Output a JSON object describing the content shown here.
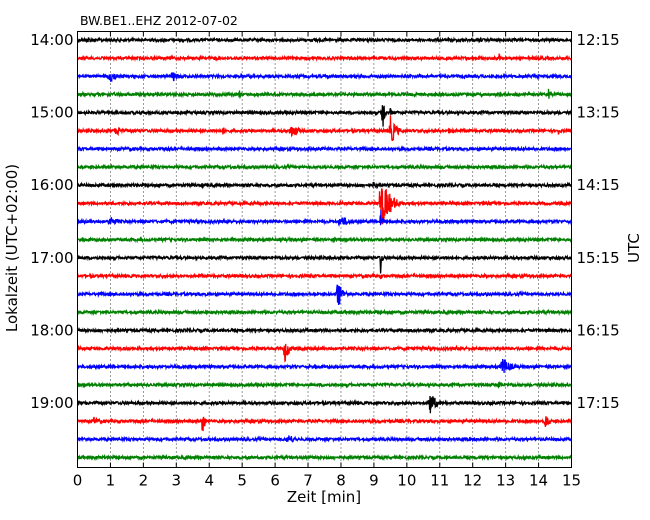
{
  "chart_data": {
    "type": "line",
    "chart_kind": "seismogram (dayplot)",
    "title": "BW.BE1..EHZ 2012-07-02",
    "xlabel": "Zeit  [min]",
    "ylabel_left": "Lokalzeit (UTC+02:00)",
    "ylabel_right": "UTC",
    "xlim": [
      0,
      15
    ],
    "x_ticks": [
      "0",
      "1",
      "2",
      "3",
      "4",
      "5",
      "6",
      "7",
      "8",
      "9",
      "10",
      "11",
      "12",
      "13",
      "14",
      "15"
    ],
    "vertical_grid": "dotted, every 1 min",
    "row_interval_min": 15,
    "row_count": 24,
    "row_colors": [
      "#000000",
      "#ff0000",
      "#0000ff",
      "#008000"
    ],
    "left_tick_labels": [
      "14:00",
      "15:00",
      "16:00",
      "17:00",
      "18:00",
      "19:00"
    ],
    "left_tick_rows": [
      0,
      4,
      8,
      12,
      16,
      20
    ],
    "right_tick_labels": [
      "12:15",
      "13:15",
      "14:15",
      "15:15",
      "16:15",
      "17:15"
    ],
    "right_tick_rows": [
      0,
      4,
      8,
      12,
      16,
      20
    ],
    "events": [
      {
        "row": 4,
        "minute": 9.25,
        "amplitude_rows": 1.6,
        "width_min": 0.12,
        "note": "large spike, start of quake"
      },
      {
        "row": 5,
        "minute": 9.5,
        "amplitude_rows": 0.9,
        "width_min": 0.35
      },
      {
        "row": 9,
        "minute": 9.25,
        "amplitude_rows": 1.4,
        "width_min": 0.55,
        "note": "main earthquake"
      },
      {
        "row": 10,
        "minute": 9.2,
        "amplitude_rows": 1.0,
        "width_min": 0.1
      },
      {
        "row": 12,
        "minute": 9.2,
        "amplitude_rows": 1.2,
        "width_min": 0.08
      },
      {
        "row": 5,
        "minute": 6.5,
        "amplitude_rows": 0.45,
        "width_min": 0.4
      },
      {
        "row": 10,
        "minute": 1.0,
        "amplitude_rows": 0.35,
        "width_min": 0.4
      },
      {
        "row": 10,
        "minute": 8.0,
        "amplitude_rows": 0.35,
        "width_min": 0.5
      },
      {
        "row": 14,
        "minute": 7.9,
        "amplitude_rows": 0.9,
        "width_min": 0.3
      },
      {
        "row": 17,
        "minute": 6.3,
        "amplitude_rows": 0.75,
        "width_min": 0.25
      },
      {
        "row": 18,
        "minute": 12.9,
        "amplitude_rows": 0.55,
        "width_min": 0.5
      },
      {
        "row": 19,
        "minute": 12.8,
        "amplitude_rows": 0.3,
        "width_min": 0.2
      },
      {
        "row": 20,
        "minute": 10.7,
        "amplitude_rows": 0.75,
        "width_min": 0.35
      },
      {
        "row": 21,
        "minute": 3.8,
        "amplitude_rows": 0.9,
        "width_min": 0.12
      },
      {
        "row": 21,
        "minute": 14.2,
        "amplitude_rows": 0.45,
        "width_min": 0.3
      },
      {
        "row": 21,
        "minute": 0.5,
        "amplitude_rows": 0.25,
        "width_min": 0.4
      },
      {
        "row": 22,
        "minute": 6.4,
        "amplitude_rows": 0.3,
        "width_min": 0.5
      },
      {
        "row": 2,
        "minute": 1.0,
        "amplitude_rows": 0.35,
        "width_min": 0.5
      },
      {
        "row": 2,
        "minute": 2.9,
        "amplitude_rows": 0.3,
        "width_min": 0.4
      },
      {
        "row": 1,
        "minute": 12.8,
        "amplitude_rows": 0.3,
        "width_min": 0.2
      },
      {
        "row": 3,
        "minute": 4.9,
        "amplitude_rows": 0.35,
        "width_min": 0.1
      },
      {
        "row": 3,
        "minute": 14.3,
        "amplitude_rows": 0.35,
        "width_min": 0.1
      },
      {
        "row": 4,
        "minute": 9.5,
        "amplitude_rows": 0.35,
        "width_min": 0.1
      },
      {
        "row": 5,
        "minute": 1.2,
        "amplitude_rows": 0.25,
        "width_min": 0.5
      },
      {
        "row": 5,
        "minute": 4.4,
        "amplitude_rows": 0.25,
        "width_min": 0.3
      },
      {
        "row": 5,
        "minute": 11.3,
        "amplitude_rows": 0.25,
        "width_min": 0.3
      },
      {
        "row": 5,
        "minute": 14.6,
        "amplitude_rows": 0.3,
        "width_min": 0.1
      },
      {
        "row": 13,
        "minute": 9.2,
        "amplitude_rows": 0.2,
        "width_min": 0.1
      },
      {
        "row": 16,
        "minute": 2.9,
        "amplitude_rows": 0.15,
        "width_min": 0.05
      },
      {
        "row": 0,
        "minute": 0.3,
        "amplitude_rows": 0.2,
        "width_min": 0.4
      },
      {
        "row": 8,
        "minute": 1.1,
        "amplitude_rows": 0.2,
        "width_min": 0.2
      },
      {
        "row": 8,
        "minute": 3.8,
        "amplitude_rows": 0.2,
        "width_min": 0.15
      },
      {
        "row": 8,
        "minute": 9.0,
        "amplitude_rows": 0.3,
        "width_min": 0.2
      }
    ]
  }
}
